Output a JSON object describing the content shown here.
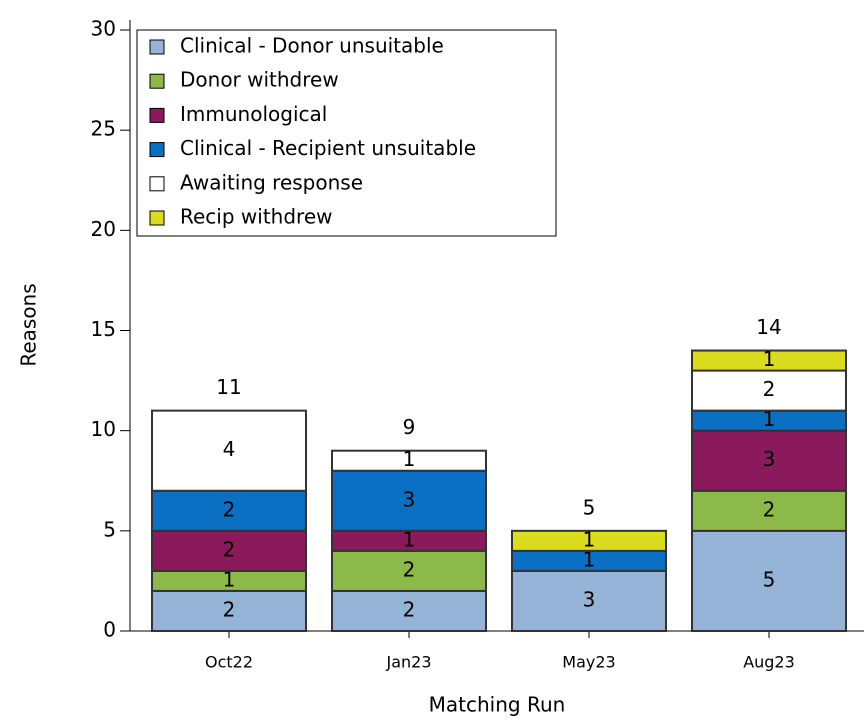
{
  "chart_data": {
    "type": "stacked_bar",
    "x_label": "Matching Run",
    "y_label": "Reasons",
    "categories": [
      "Oct22",
      "Jan23",
      "May23",
      "Aug23"
    ],
    "series": [
      {
        "name": "Clinical - Donor unsuitable",
        "color": "#95b3d7",
        "values": [
          2,
          2,
          3,
          5
        ]
      },
      {
        "name": "Donor withdrew",
        "color": "#8db84a",
        "values": [
          1,
          2,
          0,
          2
        ]
      },
      {
        "name": "Immunological",
        "color": "#8b1a5c",
        "values": [
          2,
          1,
          0,
          3
        ]
      },
      {
        "name": "Clinical - Recipient unsuitable",
        "color": "#0b6fc4",
        "values": [
          2,
          3,
          1,
          1
        ]
      },
      {
        "name": "Awaiting response",
        "color": "#ffffff",
        "values": [
          4,
          1,
          0,
          2
        ]
      },
      {
        "name": "Recip withdrew",
        "color": "#dcdc1e",
        "values": [
          0,
          0,
          1,
          1
        ]
      }
    ],
    "totals": [
      11,
      9,
      5,
      14
    ],
    "ylim": [
      0,
      30
    ],
    "yticks": [
      0,
      5,
      10,
      15,
      20,
      25,
      30
    ],
    "legend": "upper left"
  }
}
